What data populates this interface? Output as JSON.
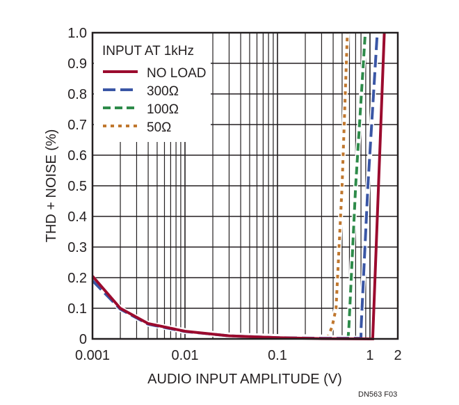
{
  "chart_data": {
    "type": "line",
    "title": "",
    "xlabel": "AUDIO INPUT AMPLITUDE (V)",
    "ylabel": "THD + NOISE (%)",
    "xscale": "log",
    "xlim": [
      0.001,
      2
    ],
    "ylim": [
      0,
      1.0
    ],
    "grid": true,
    "x_ticks": [
      {
        "v": 0.001,
        "label": "0.001"
      },
      {
        "v": 0.01,
        "label": "0.01"
      },
      {
        "v": 0.1,
        "label": "0.1"
      },
      {
        "v": 1,
        "label": "1"
      },
      {
        "v": 2,
        "label": "2"
      }
    ],
    "y_ticks": [
      {
        "v": 0,
        "label": "0"
      },
      {
        "v": 0.1,
        "label": "0.1"
      },
      {
        "v": 0.2,
        "label": "0.2"
      },
      {
        "v": 0.3,
        "label": "0.3"
      },
      {
        "v": 0.4,
        "label": "0.4"
      },
      {
        "v": 0.5,
        "label": "0.5"
      },
      {
        "v": 0.6,
        "label": "0.6"
      },
      {
        "v": 0.7,
        "label": "0.7"
      },
      {
        "v": 0.8,
        "label": "0.8"
      },
      {
        "v": 0.9,
        "label": "0.9"
      },
      {
        "v": 1.0,
        "label": "1.0"
      }
    ],
    "legend_title": "INPUT AT 1kHz",
    "legend_placement": "top-left",
    "series": [
      {
        "name": "50Ω",
        "color": "#c0772e",
        "style": "dotted",
        "x": [
          0.001,
          0.002,
          0.004,
          0.01,
          0.03,
          0.1,
          0.2,
          0.35,
          0.39,
          0.43,
          0.5,
          0.57
        ],
        "y": [
          0.2,
          0.1,
          0.05,
          0.027,
          0.013,
          0.008,
          0.007,
          0.006,
          0.04,
          0.1,
          0.5,
          1.0
        ]
      },
      {
        "name": "100Ω",
        "color": "#2e8b4a",
        "style": "dashed",
        "x": [
          0.001,
          0.002,
          0.004,
          0.01,
          0.03,
          0.1,
          0.3,
          0.58,
          0.59,
          0.7,
          0.89
        ],
        "y": [
          0.2,
          0.1,
          0.05,
          0.026,
          0.012,
          0.006,
          0.004,
          0.004,
          0.03,
          0.5,
          1.0
        ]
      },
      {
        "name": "300Ω",
        "color": "#3a56a5",
        "style": "longdash",
        "x": [
          0.001,
          0.002,
          0.004,
          0.01,
          0.03,
          0.1,
          0.3,
          0.8,
          0.8,
          0.95,
          1.2
        ],
        "y": [
          0.19,
          0.097,
          0.048,
          0.024,
          0.01,
          0.004,
          0.002,
          0.002,
          0.03,
          0.5,
          1.0
        ]
      },
      {
        "name": "NO LOAD",
        "color": "#9b0b2e",
        "style": "solid",
        "x": [
          0.001,
          0.002,
          0.004,
          0.01,
          0.03,
          0.1,
          0.3,
          1.0,
          1.07,
          1.43
        ],
        "y": [
          0.205,
          0.1,
          0.05,
          0.025,
          0.01,
          0.004,
          0.001,
          0.0,
          0.0,
          1.0
        ]
      }
    ],
    "legend_order": [
      3,
      2,
      1,
      0
    ]
  },
  "figure_id": "DN563  F03"
}
